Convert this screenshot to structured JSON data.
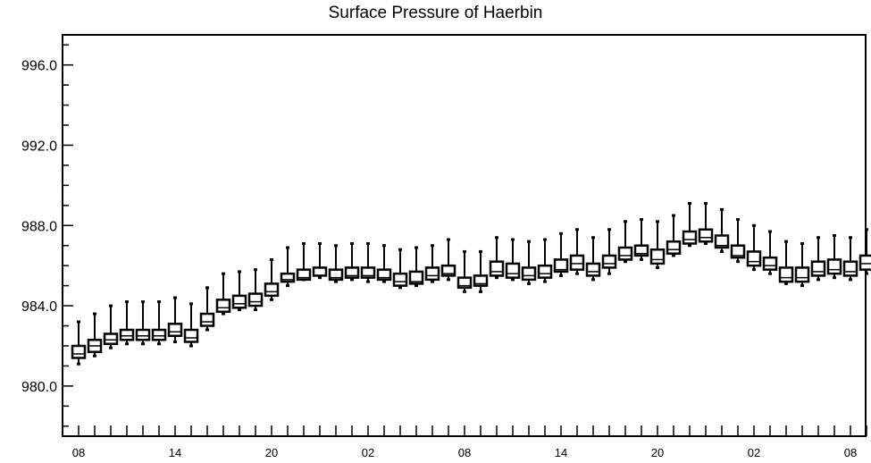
{
  "chart_data": {
    "type": "boxplot",
    "title": "Surface Pressure of Haerbin",
    "xlabel": "",
    "ylabel": "",
    "ylim": [
      977.5,
      997.5
    ],
    "y_ticks": [
      980.0,
      984.0,
      988.0,
      992.0,
      996.0
    ],
    "y_tick_labels": [
      "980.0",
      "984.0",
      "988.0",
      "992.0",
      "996.0"
    ],
    "x_tick_labels": [
      {
        "index": 0,
        "label": "08"
      },
      {
        "index": 6,
        "label": "14"
      },
      {
        "index": 12,
        "label": "20"
      },
      {
        "index": 18,
        "label": "02"
      },
      {
        "index": 24,
        "label": "08"
      },
      {
        "index": 30,
        "label": "14"
      },
      {
        "index": 36,
        "label": "20"
      },
      {
        "index": 42,
        "label": "02"
      },
      {
        "index": 48,
        "label": "08"
      }
    ],
    "series": [
      {
        "whisker_low": [
          981.1,
          981.5,
          981.9,
          982.1,
          982.1,
          982.1,
          982.2,
          982.0,
          982.8,
          983.6,
          983.8,
          983.8,
          984.3,
          985.0,
          985.3,
          985.4,
          985.2,
          985.3,
          985.2,
          985.2,
          984.9,
          985.0,
          985.2,
          985.3,
          984.7,
          984.7,
          985.4,
          985.3,
          985.1,
          985.2,
          985.5,
          985.6,
          985.3,
          985.6,
          986.2,
          986.3,
          985.9,
          986.5,
          987.0,
          987.1,
          986.7,
          986.2,
          985.8,
          985.6,
          985.1,
          985.0,
          985.3,
          985.4,
          985.3,
          985.6
        ],
        "q1": [
          981.4,
          981.7,
          982.1,
          982.3,
          982.3,
          982.3,
          982.5,
          982.2,
          983.0,
          983.7,
          983.9,
          984.0,
          984.5,
          985.2,
          985.3,
          985.5,
          985.3,
          985.4,
          985.4,
          985.3,
          985.0,
          985.1,
          985.3,
          985.5,
          984.9,
          985.0,
          985.5,
          985.4,
          985.3,
          985.4,
          985.7,
          985.8,
          985.5,
          985.9,
          986.3,
          986.5,
          986.1,
          986.6,
          987.1,
          987.2,
          986.9,
          986.4,
          986.0,
          985.8,
          985.2,
          985.2,
          985.5,
          985.6,
          985.5,
          985.8
        ],
        "median": [
          981.6,
          982.0,
          982.3,
          982.5,
          982.5,
          982.5,
          982.7,
          982.4,
          983.2,
          983.9,
          984.1,
          984.2,
          984.7,
          985.3,
          985.4,
          985.5,
          985.4,
          985.5,
          985.5,
          985.4,
          985.2,
          985.2,
          985.5,
          985.6,
          985.0,
          985.1,
          985.7,
          985.6,
          985.5,
          985.6,
          985.8,
          986.1,
          985.7,
          986.1,
          986.5,
          986.6,
          986.3,
          986.8,
          987.3,
          987.4,
          987.0,
          986.5,
          986.2,
          986.0,
          985.4,
          985.4,
          985.7,
          985.8,
          985.7,
          986.1
        ],
        "q3": [
          982.0,
          982.3,
          982.6,
          982.8,
          982.8,
          982.8,
          983.1,
          982.8,
          983.6,
          984.3,
          984.5,
          984.6,
          985.1,
          985.6,
          985.8,
          985.9,
          985.8,
          985.9,
          985.9,
          985.8,
          985.6,
          985.7,
          985.9,
          986.0,
          985.4,
          985.5,
          986.2,
          986.1,
          985.9,
          986.0,
          986.3,
          986.5,
          986.1,
          986.5,
          986.9,
          987.0,
          986.8,
          987.2,
          987.7,
          987.8,
          987.5,
          987.0,
          986.7,
          986.4,
          985.9,
          985.9,
          986.2,
          986.3,
          986.2,
          986.5
        ],
        "whisker_high": [
          983.2,
          983.6,
          984.0,
          984.2,
          984.2,
          984.2,
          984.4,
          984.1,
          984.9,
          985.6,
          985.7,
          985.8,
          986.3,
          986.9,
          987.1,
          987.1,
          987.0,
          987.1,
          987.1,
          987.0,
          986.8,
          986.9,
          987.0,
          987.3,
          986.7,
          986.7,
          987.4,
          987.3,
          987.2,
          987.3,
          987.6,
          987.8,
          987.4,
          987.8,
          988.2,
          988.3,
          988.2,
          988.5,
          989.1,
          989.1,
          988.8,
          988.3,
          988.0,
          987.7,
          987.2,
          987.1,
          987.4,
          987.5,
          987.4,
          987.8
        ]
      }
    ],
    "grid": false,
    "legend": "none",
    "colors": {
      "box_fill": "#ffffff",
      "box_edge": "#000000",
      "whisker": "#000000",
      "axis": "#000000"
    }
  }
}
